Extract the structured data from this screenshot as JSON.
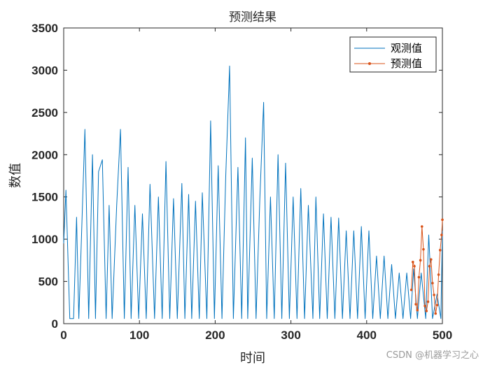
{
  "watermark": "CSDN @机器学习之心",
  "colors": {
    "observed": "#0072BD",
    "predicted": "#D95319",
    "axis": "#262626"
  },
  "chart_data": {
    "type": "line",
    "title": "预测结果",
    "xlabel": "时间",
    "ylabel": "数值",
    "xlim": [
      0,
      500
    ],
    "ylim": [
      0,
      3500
    ],
    "xticks": [
      0,
      100,
      200,
      300,
      400,
      500
    ],
    "yticks": [
      0,
      500,
      1000,
      1500,
      2000,
      2500,
      3000,
      3500
    ],
    "xtick_labels": [
      "0",
      "100",
      "200",
      "300",
      "400",
      "500"
    ],
    "ytick_labels": [
      "0",
      "500",
      "1000",
      "1500",
      "2000",
      "2500",
      "3000",
      "3500"
    ],
    "legend_position": "top-right",
    "series": [
      {
        "name": "观测值",
        "color": "#0072BD",
        "marker": "none",
        "x": [
          0,
          3,
          8,
          13,
          17,
          20,
          23,
          28,
          33,
          38,
          42,
          46,
          51,
          56,
          60,
          64,
          70,
          75,
          80,
          85,
          89,
          94,
          99,
          104,
          109,
          114,
          120,
          125,
          130,
          135,
          140,
          145,
          150,
          156,
          160,
          165,
          169,
          174,
          179,
          183,
          189,
          194,
          199,
          204,
          209,
          214,
          219,
          224,
          230,
          235,
          240,
          243,
          249,
          254,
          259,
          264,
          268,
          273,
          278,
          283,
          288,
          293,
          298,
          303,
          308,
          313,
          318,
          323,
          329,
          333,
          338,
          343,
          348,
          353,
          358,
          363,
          368,
          373,
          378,
          383,
          388,
          393,
          398,
          403,
          408,
          413,
          418,
          423,
          428,
          433,
          438,
          443,
          448,
          453,
          458,
          462,
          467,
          472,
          478,
          482,
          487,
          493,
          498,
          500
        ],
        "y": [
          950,
          1580,
          60,
          60,
          1260,
          60,
          900,
          2300,
          60,
          2000,
          60,
          1800,
          1940,
          60,
          1400,
          60,
          1400,
          2300,
          60,
          1850,
          60,
          1400,
          60,
          1300,
          60,
          1650,
          60,
          1500,
          60,
          1920,
          60,
          1480,
          60,
          1660,
          60,
          1530,
          60,
          1450,
          60,
          1550,
          60,
          2400,
          60,
          1870,
          60,
          1750,
          3050,
          60,
          1850,
          60,
          2200,
          60,
          1960,
          60,
          1480,
          2620,
          60,
          1500,
          60,
          2000,
          60,
          1900,
          60,
          1500,
          60,
          1600,
          60,
          1400,
          60,
          1500,
          60,
          1300,
          60,
          1260,
          60,
          1250,
          60,
          1100,
          60,
          1100,
          60,
          1150,
          60,
          1100,
          60,
          800,
          60,
          800,
          60,
          700,
          60,
          600,
          60,
          600,
          60,
          650,
          60,
          600,
          60,
          1050,
          60,
          350,
          60,
          1100
        ]
      },
      {
        "name": "预测值",
        "color": "#D95319",
        "marker": "point",
        "x": [
          459,
          461,
          463,
          465,
          467,
          469,
          471,
          473,
          475,
          477,
          479,
          481,
          483,
          485,
          487,
          489,
          491,
          493,
          495,
          497,
          499,
          500
        ],
        "y": [
          400,
          730,
          680,
          230,
          160,
          550,
          750,
          1150,
          880,
          210,
          150,
          260,
          680,
          760,
          480,
          340,
          120,
          220,
          580,
          870,
          1050,
          1230
        ]
      }
    ]
  }
}
